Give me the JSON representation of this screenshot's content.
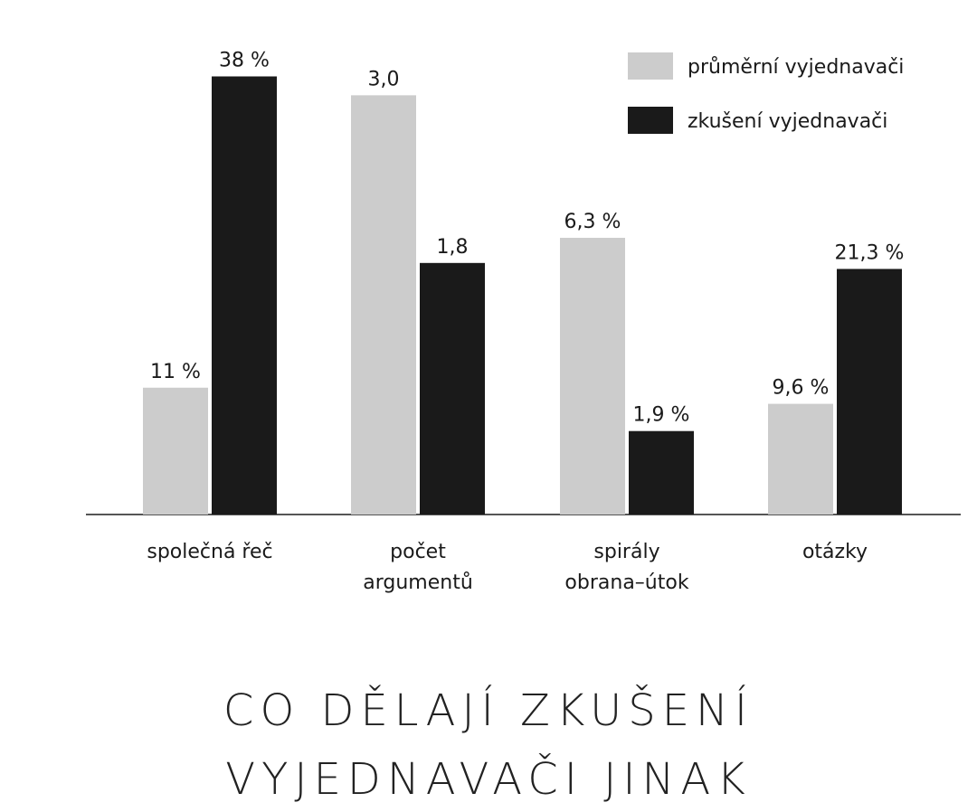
{
  "chart_data": {
    "type": "bar",
    "title_lines": [
      "CO DĚLAJÍ ZKUŠENÍ",
      "VYJEDNAVAČI JINAK"
    ],
    "categories": [
      [
        "společná řeč"
      ],
      [
        "počet",
        "argumentů"
      ],
      [
        "spirály",
        "obrana–útok"
      ],
      [
        "otázky"
      ]
    ],
    "series": [
      {
        "name": "průměrní vyjednavači",
        "color": "#cccccc",
        "values": [
          11,
          3.0,
          6.3,
          9.6
        ],
        "labels": [
          "11 %",
          "3,0",
          "6,3 %",
          "9,6 %"
        ]
      },
      {
        "name": "zkušení vyjednavači",
        "color": "#1a1a1a",
        "values": [
          38,
          1.8,
          1.9,
          21.3
        ],
        "labels": [
          "38 %",
          "1,8",
          "1,9 %",
          "21,3 %"
        ]
      }
    ],
    "value_scale_per_category": [
      40,
      3.3,
      10.5,
      40
    ],
    "legend_position": "top-right",
    "grid": false
  }
}
